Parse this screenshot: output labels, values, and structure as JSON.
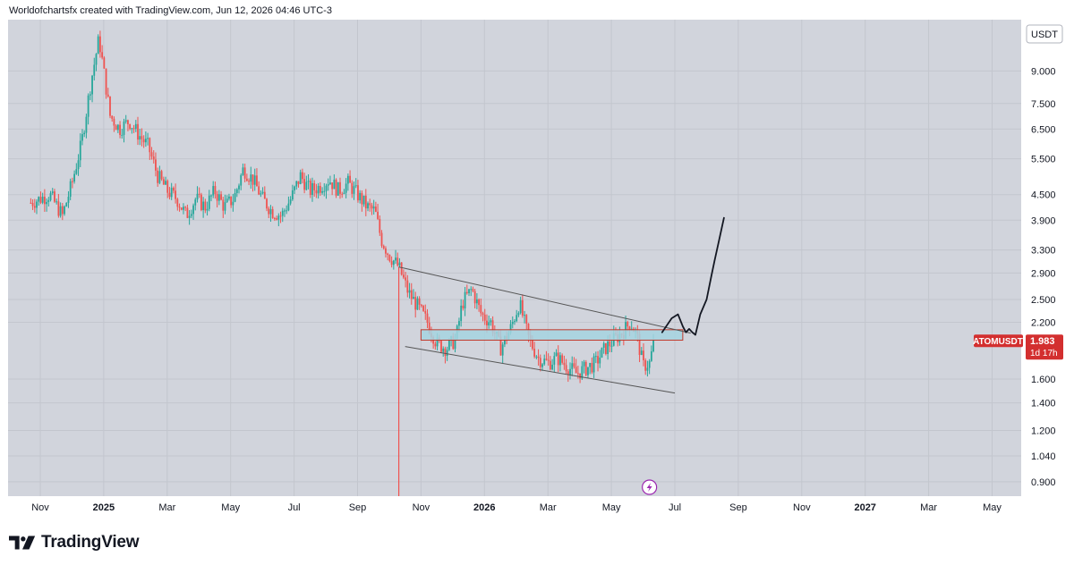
{
  "header": {
    "caption": "Worldofchartsfx created with TradingView.com, Jun 12, 2026 04:46 UTC-3"
  },
  "brand": {
    "name": "TradingView",
    "logo_icon": "tradingview-logo-icon"
  },
  "colors": {
    "background": "#d1d4dc",
    "up": "#26a69a",
    "down": "#ef5350",
    "zone_fill": "#a6d3e0",
    "zone_stroke": "#c0392b",
    "channel": "#555555",
    "drawing": "#131722",
    "event_line": "#ef5350",
    "price_label_bg": "#d32f2f",
    "event_icon": "#9c27b0"
  },
  "chart_data": {
    "type": "candlestick",
    "symbol": "ATOMUSDT",
    "currency": "USDT",
    "scale": "log",
    "grid": true,
    "ylim": [
      0.83,
      12.0
    ],
    "y_ticks": [
      {
        "v": 9.0,
        "label": "9.000"
      },
      {
        "v": 7.5,
        "label": "7.500"
      },
      {
        "v": 6.5,
        "label": "6.500"
      },
      {
        "v": 5.5,
        "label": "5.500"
      },
      {
        "v": 4.5,
        "label": "4.500"
      },
      {
        "v": 3.9,
        "label": "3.900"
      },
      {
        "v": 3.3,
        "label": "3.300"
      },
      {
        "v": 2.9,
        "label": "2.900"
      },
      {
        "v": 2.5,
        "label": "2.500"
      },
      {
        "v": 2.2,
        "label": "2.200"
      },
      {
        "v": 1.6,
        "label": "1.600"
      },
      {
        "v": 1.4,
        "label": "1.400"
      },
      {
        "v": 1.2,
        "label": "1.200"
      },
      {
        "v": 1.04,
        "label": "1.040"
      },
      {
        "v": 0.9,
        "label": "0.900"
      }
    ],
    "x_ticks": [
      {
        "label": "Nov",
        "month": 0,
        "bold": false
      },
      {
        "label": "2025",
        "month": 2,
        "bold": true
      },
      {
        "label": "Mar",
        "month": 4,
        "bold": false
      },
      {
        "label": "May",
        "month": 6,
        "bold": false
      },
      {
        "label": "Jul",
        "month": 8,
        "bold": false
      },
      {
        "label": "Sep",
        "month": 10,
        "bold": false
      },
      {
        "label": "Nov",
        "month": 12,
        "bold": false
      },
      {
        "label": "2026",
        "month": 14,
        "bold": true
      },
      {
        "label": "Mar",
        "month": 16,
        "bold": false
      },
      {
        "label": "May",
        "month": 18,
        "bold": false
      },
      {
        "label": "Jul",
        "month": 20,
        "bold": false
      },
      {
        "label": "Sep",
        "month": 22,
        "bold": false
      },
      {
        "label": "Nov",
        "month": 24,
        "bold": false
      },
      {
        "label": "2027",
        "month": 26,
        "bold": true
      },
      {
        "label": "Mar",
        "month": 28,
        "bold": false
      },
      {
        "label": "May",
        "month": 30,
        "bold": false
      }
    ],
    "price_path_keypoints": [
      [
        -0.3,
        4.3
      ],
      [
        0.3,
        4.5
      ],
      [
        0.7,
        4.0
      ],
      [
        1.0,
        4.8
      ],
      [
        1.3,
        6.0
      ],
      [
        1.6,
        8.5
      ],
      [
        1.85,
        10.8
      ],
      [
        2.0,
        9.0
      ],
      [
        2.2,
        7.0
      ],
      [
        2.5,
        6.5
      ],
      [
        2.8,
        6.8
      ],
      [
        3.1,
        6.3
      ],
      [
        3.4,
        5.9
      ],
      [
        3.7,
        5.0
      ],
      [
        4.0,
        4.6
      ],
      [
        4.3,
        4.4
      ],
      [
        4.6,
        4.0
      ],
      [
        4.9,
        4.4
      ],
      [
        5.2,
        4.2
      ],
      [
        5.5,
        4.6
      ],
      [
        5.8,
        4.2
      ],
      [
        6.1,
        4.4
      ],
      [
        6.4,
        5.2
      ],
      [
        6.7,
        4.9
      ],
      [
        7.0,
        4.4
      ],
      [
        7.3,
        4.1
      ],
      [
        7.6,
        4.0
      ],
      [
        7.9,
        4.4
      ],
      [
        8.2,
        5.0
      ],
      [
        8.5,
        4.6
      ],
      [
        8.8,
        4.7
      ],
      [
        9.1,
        4.9
      ],
      [
        9.4,
        4.6
      ],
      [
        9.7,
        4.8
      ],
      [
        10.0,
        4.5
      ],
      [
        10.3,
        4.2
      ],
      [
        10.55,
        4.1
      ],
      [
        10.75,
        3.5
      ],
      [
        11.0,
        3.2
      ],
      [
        11.3,
        3.0
      ],
      [
        11.6,
        2.6
      ],
      [
        11.9,
        2.4
      ],
      [
        12.2,
        2.2
      ],
      [
        12.5,
        1.95
      ],
      [
        12.8,
        1.9
      ],
      [
        13.1,
        2.0
      ],
      [
        13.3,
        2.45
      ],
      [
        13.6,
        2.65
      ],
      [
        13.9,
        2.3
      ],
      [
        14.2,
        2.2
      ],
      [
        14.5,
        1.9
      ],
      [
        14.8,
        2.1
      ],
      [
        15.1,
        2.45
      ],
      [
        15.4,
        2.0
      ],
      [
        15.7,
        1.8
      ],
      [
        16.0,
        1.75
      ],
      [
        16.3,
        1.8
      ],
      [
        16.6,
        1.72
      ],
      [
        16.9,
        1.65
      ],
      [
        17.2,
        1.7
      ],
      [
        17.5,
        1.75
      ],
      [
        17.8,
        1.9
      ],
      [
        18.1,
        2.0
      ],
      [
        18.4,
        2.1
      ],
      [
        18.6,
        2.2
      ],
      [
        18.8,
        2.05
      ],
      [
        19.0,
        1.72
      ],
      [
        19.2,
        1.75
      ],
      [
        19.35,
        1.98
      ]
    ],
    "event_line": {
      "month": 11.3,
      "low": 0.83,
      "high": 3.0
    },
    "event_icon": "lightning-icon",
    "zone": {
      "m0": 12.0,
      "m1": 20.25,
      "low": 1.99,
      "high": 2.11
    },
    "channel_upper": {
      "m0": 11.3,
      "p0": 3.0,
      "m1": 20.5,
      "p1": 2.07
    },
    "channel_lower": {
      "m0": 11.5,
      "p0": 1.92,
      "m1": 20.0,
      "p1": 1.48
    },
    "drawing_keypoints": [
      [
        19.6,
        2.08
      ],
      [
        19.9,
        2.25
      ],
      [
        20.1,
        2.3
      ],
      [
        20.25,
        2.15
      ],
      [
        20.35,
        2.08
      ],
      [
        20.45,
        2.12
      ],
      [
        20.55,
        2.08
      ],
      [
        20.65,
        2.05
      ],
      [
        20.8,
        2.3
      ],
      [
        21.0,
        2.5
      ],
      [
        21.15,
        2.85
      ],
      [
        21.25,
        3.1
      ],
      [
        21.4,
        3.5
      ],
      [
        21.55,
        3.95
      ]
    ],
    "last_price": {
      "symbol_label": "ATOMUSDT",
      "price": 1.983,
      "price_label": "1.983",
      "countdown": "1d 17h"
    }
  }
}
